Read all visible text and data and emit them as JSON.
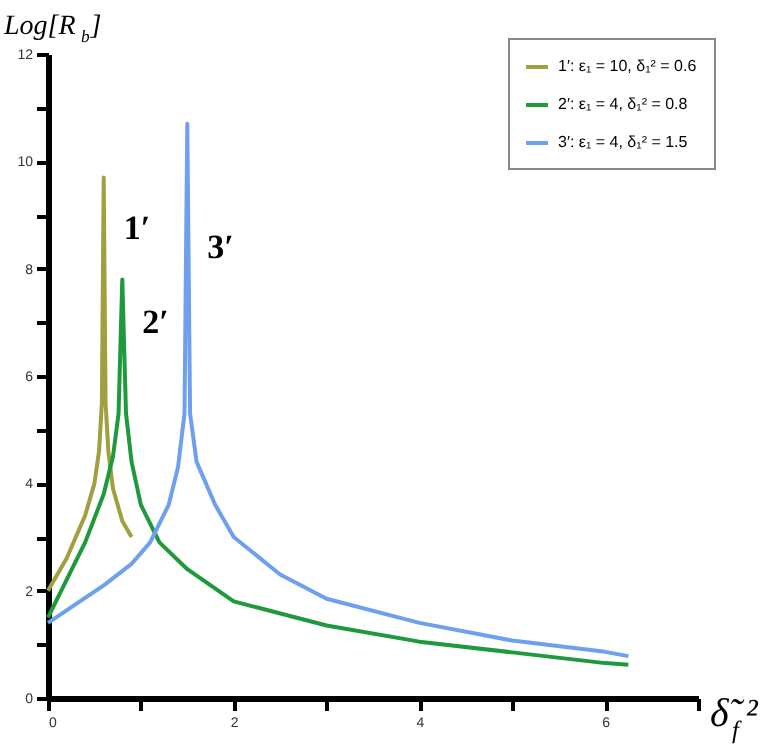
{
  "chart_data": {
    "type": "line",
    "xlabel": "δ̃$_{f}$²",
    "ylabel": "Log[R$_{b}$]",
    "xlim": [
      0,
      7
    ],
    "ylim": [
      0,
      12
    ],
    "xticks": [
      0,
      {
        "value": 1,
        "label": null
      },
      2,
      {
        "value": 3,
        "label": null
      },
      4,
      {
        "value": 5,
        "label": null
      },
      6,
      {
        "value": 7,
        "label": null
      }
    ],
    "yticks": [
      0,
      {
        "value": 1,
        "label": null
      },
      2,
      {
        "value": 3,
        "label": null
      },
      4,
      {
        "value": 5,
        "label": null
      },
      6,
      {
        "value": 7,
        "label": null
      },
      8,
      {
        "value": 9,
        "label": null
      },
      10,
      {
        "value": 11,
        "label": null
      },
      12
    ],
    "grid": false,
    "legend": "top right",
    "line_style": "solid",
    "marker": "none",
    "series": [
      {
        "name": "1′: ε₁ = 10, δ₁² = 0.6",
        "color": "#a0a040",
        "x": [
          0,
          0.1,
          0.2,
          0.3,
          0.4,
          0.5,
          0.55,
          0.58,
          0.6,
          0.62,
          0.65,
          0.7,
          0.8,
          0.9
        ],
        "values": [
          2.0,
          2.3,
          2.6,
          3.0,
          3.4,
          4.0,
          4.6,
          5.5,
          9.7,
          5.5,
          4.6,
          3.9,
          3.3,
          3.0
        ]
      },
      {
        "name": "2′: ε₁ = 4, δ₁² = 0.8",
        "color": "#1e9a3c",
        "x": [
          0,
          0.2,
          0.4,
          0.6,
          0.7,
          0.76,
          0.8,
          0.84,
          0.9,
          1.0,
          1.2,
          1.5,
          2,
          3,
          4,
          5,
          6,
          6.25
        ],
        "values": [
          1.5,
          2.2,
          2.9,
          3.8,
          4.5,
          5.3,
          7.8,
          5.3,
          4.4,
          3.6,
          2.9,
          2.4,
          1.8,
          1.35,
          1.05,
          0.85,
          0.65,
          0.62
        ]
      },
      {
        "name": "3′: ε₁ = 4, δ₁² = 1.5",
        "color": "#6fa0f0",
        "x": [
          0,
          0.3,
          0.6,
          0.9,
          1.1,
          1.3,
          1.4,
          1.47,
          1.5,
          1.53,
          1.6,
          1.8,
          2,
          2.5,
          3,
          4,
          5,
          6,
          6.25
        ],
        "values": [
          1.4,
          1.75,
          2.1,
          2.5,
          2.9,
          3.6,
          4.3,
          5.3,
          10.7,
          5.3,
          4.4,
          3.6,
          3.0,
          2.3,
          1.85,
          1.4,
          1.07,
          0.86,
          0.78
        ]
      }
    ],
    "annotations": [
      "1′",
      "2′",
      "3′"
    ]
  }
}
